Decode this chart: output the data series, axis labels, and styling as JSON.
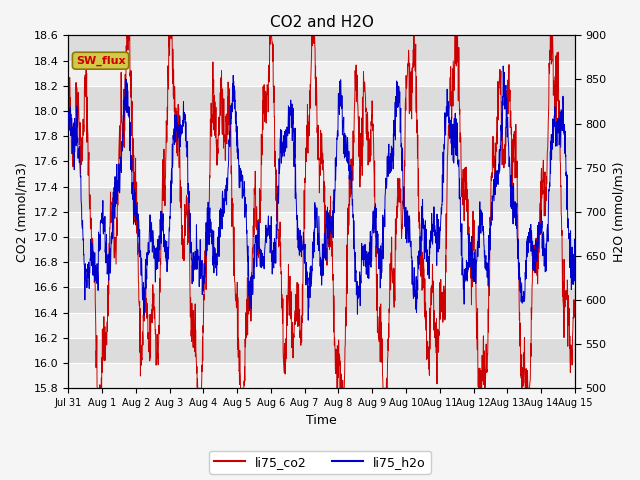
{
  "title": "CO2 and H2O",
  "xlabel": "Time",
  "ylabel_left": "CO2 (mmol/m3)",
  "ylabel_right": "H2O (mmol/m3)",
  "ylim_left": [
    15.8,
    18.6
  ],
  "ylim_right": [
    500,
    900
  ],
  "yticks_left": [
    15.8,
    16.0,
    16.2,
    16.4,
    16.6,
    16.8,
    17.0,
    17.2,
    17.4,
    17.6,
    17.8,
    18.0,
    18.2,
    18.4,
    18.6
  ],
  "yticks_right": [
    500,
    550,
    600,
    650,
    700,
    750,
    800,
    850,
    900
  ],
  "xtick_labels": [
    "Jul 31",
    "Aug 1",
    "Aug 2",
    "Aug 3",
    "Aug 4",
    "Aug 5",
    "Aug 6",
    "Aug 7",
    "Aug 8",
    "Aug 9",
    "Aug 10",
    "Aug 11",
    "Aug 12",
    "Aug 13",
    "Aug 14",
    "Aug 15"
  ],
  "co2_color": "#cc0000",
  "h2o_color": "#0000cc",
  "legend_label_co2": "li75_co2",
  "legend_label_h2o": "li75_h2o",
  "annotation_text": "SW_flux",
  "annotation_bg": "#d4c84a",
  "annotation_border": "#8a7a00",
  "fig_bg": "#f5f5f5",
  "plot_bg": "#e8e8e8",
  "band_light": "#f0f0f0",
  "band_dark": "#dcdcdc",
  "grid_color": "#ffffff",
  "seed": 42,
  "n_points": 2000
}
